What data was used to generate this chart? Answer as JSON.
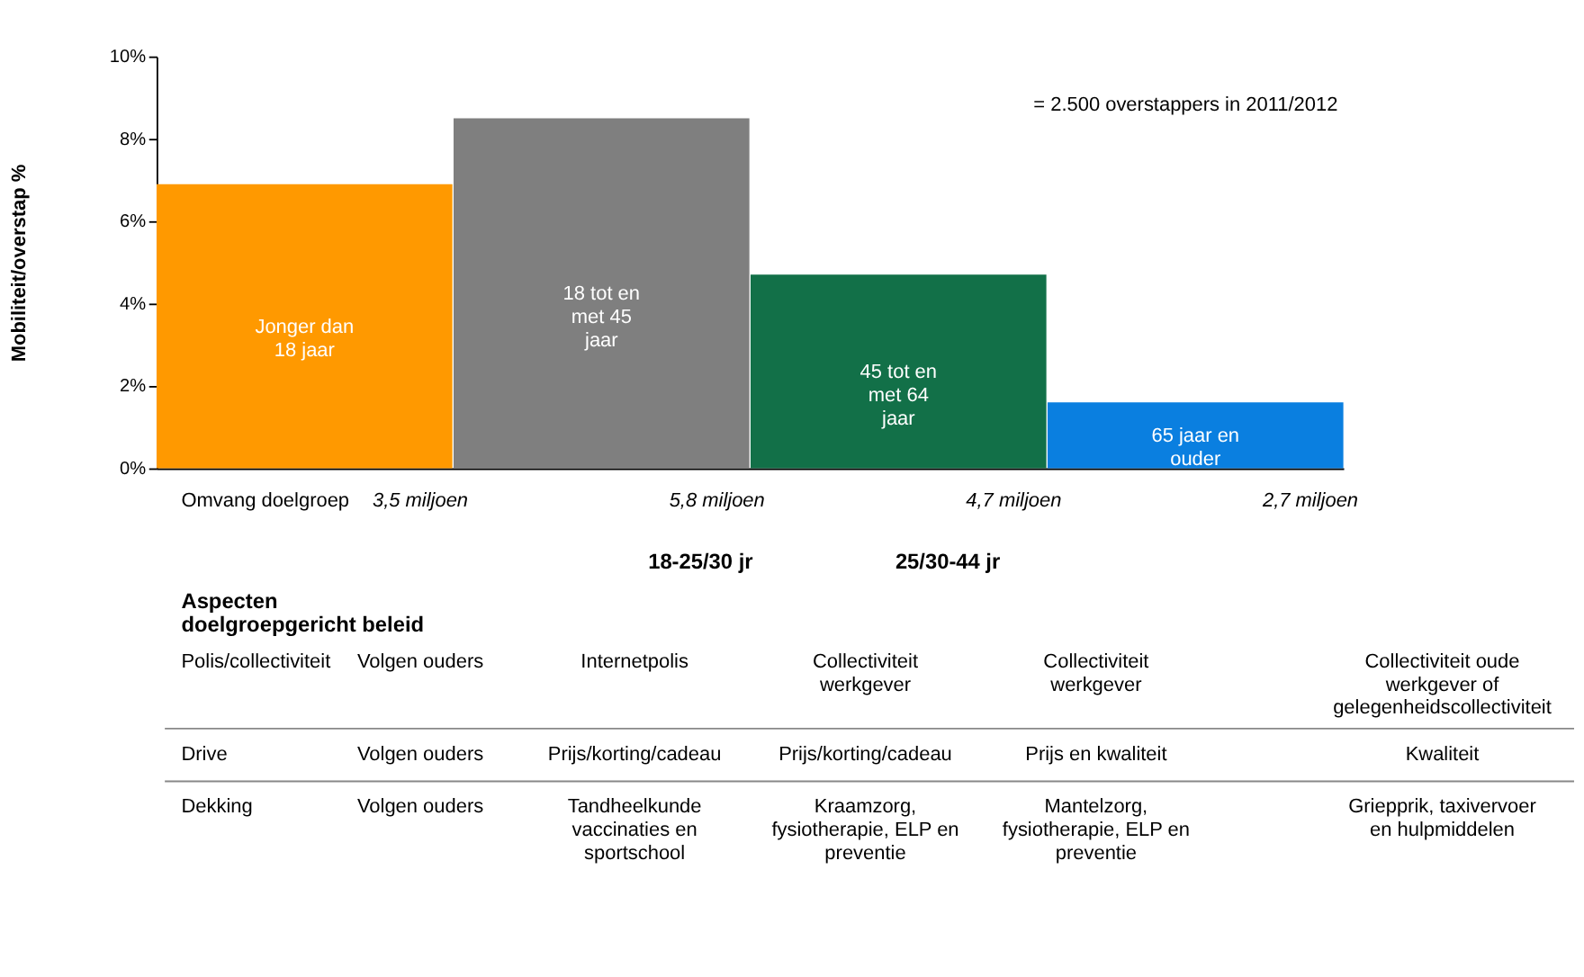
{
  "chart_data": {
    "type": "bar",
    "ylabel": "Mobiliteit/overstap %",
    "categories": [
      "Jonger dan 18 jaar",
      "18 tot en met 45 jaar",
      "45 tot en met 64 jaar",
      "65 jaar en ouder"
    ],
    "values": [
      6.9,
      8.5,
      4.7,
      1.6
    ],
    "colors": [
      "#ff9900",
      "#7f7f7f",
      "#127048",
      "#0a7fe0"
    ],
    "ylim": [
      0,
      10
    ],
    "yticks": [
      {
        "value": 0,
        "label": "0%"
      },
      {
        "value": 2,
        "label": "2%"
      },
      {
        "value": 4,
        "label": "4%"
      },
      {
        "value": 6,
        "label": "6%"
      },
      {
        "value": 8,
        "label": "8%"
      },
      {
        "value": 10,
        "label": "10%"
      }
    ],
    "grid": false,
    "tick_labels": "y",
    "annotations": [
      "= 2.500 overstappers in 2011/2012",
      "Omvang doelgroep",
      "3,5 miljoen",
      "5,8 miljoen",
      "4,7 miljoen",
      "2,7 miljoen",
      "18-25/30 jr",
      "25/30-44 jr",
      "Aspecten doelgroepgericht beleid",
      "Polis/collectiviteit",
      "Volgen ouders",
      "Internetpolis",
      "Collectiviteit werkgever",
      "Collectiviteit werkgever",
      "Collectiviteit oude werkgever of gelegenheidscollectiviteit",
      "Drive",
      "Volgen ouders",
      "Prijs/korting/cadeau",
      "Prijs/korting/cadeau",
      "Prijs en kwaliteit",
      "Kwaliteit",
      "Dekking",
      "Volgen ouders",
      "Tandheelkunde vaccinaties en sportschool",
      "Kraamzorg, fysiotherapie, ELP en preventie",
      "Mantelzorg, fysiotherapie, ELP en preventie",
      "Griepprik, taxivervoer en hulpmiddelen"
    ]
  }
}
